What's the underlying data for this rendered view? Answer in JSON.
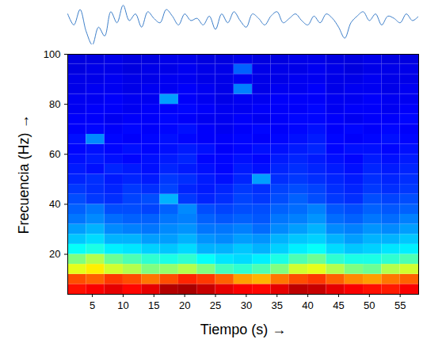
{
  "chart_data": {
    "type": "heatmap",
    "xlabel": "Tiempo (s)",
    "ylabel": "Frecuencia (Hz)",
    "xlim": [
      1,
      58
    ],
    "ylim": [
      4,
      100
    ],
    "xticks": [
      5,
      10,
      15,
      20,
      25,
      30,
      35,
      40,
      45,
      50,
      55
    ],
    "yticks": [
      20,
      40,
      60,
      80,
      100
    ],
    "time_bins": [
      1,
      4,
      7,
      10,
      13,
      16,
      19,
      22,
      25,
      28,
      31,
      34,
      37,
      40,
      43,
      46,
      49,
      52,
      55,
      58
    ],
    "frequency_bins": [
      4,
      8,
      12,
      16,
      20,
      24,
      28,
      32,
      36,
      40,
      44,
      48,
      52,
      56,
      60,
      64,
      68,
      72,
      76,
      80,
      84,
      88,
      92,
      96,
      100
    ],
    "zlim": [
      0,
      1
    ],
    "z": [
      [
        0.86,
        0.88,
        0.9,
        0.87,
        0.9,
        0.95,
        0.96,
        0.93,
        0.9,
        0.88,
        0.87,
        0.9,
        0.94,
        0.93,
        0.9,
        0.88,
        0.86,
        0.85,
        0.88
      ],
      [
        0.8,
        0.78,
        0.82,
        0.8,
        0.76,
        0.8,
        0.84,
        0.82,
        0.78,
        0.72,
        0.7,
        0.76,
        0.8,
        0.82,
        0.78,
        0.74,
        0.72,
        0.76,
        0.78
      ],
      [
        0.6,
        0.64,
        0.58,
        0.55,
        0.5,
        0.52,
        0.55,
        0.5,
        0.44,
        0.42,
        0.45,
        0.5,
        0.58,
        0.6,
        0.55,
        0.5,
        0.48,
        0.55,
        0.58
      ],
      [
        0.5,
        0.55,
        0.48,
        0.45,
        0.42,
        0.4,
        0.42,
        0.38,
        0.35,
        0.34,
        0.36,
        0.4,
        0.45,
        0.48,
        0.42,
        0.4,
        0.4,
        0.42,
        0.45
      ],
      [
        0.38,
        0.4,
        0.36,
        0.35,
        0.33,
        0.32,
        0.34,
        0.3,
        0.3,
        0.32,
        0.3,
        0.33,
        0.36,
        0.38,
        0.34,
        0.32,
        0.33,
        0.35,
        0.36
      ],
      [
        0.32,
        0.34,
        0.3,
        0.3,
        0.28,
        0.28,
        0.3,
        0.27,
        0.26,
        0.28,
        0.27,
        0.3,
        0.32,
        0.33,
        0.3,
        0.28,
        0.3,
        0.3,
        0.32
      ],
      [
        0.28,
        0.3,
        0.26,
        0.25,
        0.24,
        0.26,
        0.27,
        0.24,
        0.24,
        0.25,
        0.23,
        0.26,
        0.28,
        0.3,
        0.26,
        0.25,
        0.27,
        0.26,
        0.28
      ],
      [
        0.24,
        0.26,
        0.23,
        0.22,
        0.22,
        0.24,
        0.25,
        0.22,
        0.21,
        0.22,
        0.21,
        0.24,
        0.25,
        0.27,
        0.23,
        0.22,
        0.24,
        0.23,
        0.25
      ],
      [
        0.22,
        0.24,
        0.2,
        0.2,
        0.19,
        0.22,
        0.26,
        0.2,
        0.19,
        0.2,
        0.2,
        0.22,
        0.23,
        0.25,
        0.21,
        0.2,
        0.22,
        0.21,
        0.22
      ],
      [
        0.2,
        0.18,
        0.17,
        0.19,
        0.2,
        0.3,
        0.18,
        0.16,
        0.17,
        0.19,
        0.18,
        0.2,
        0.22,
        0.2,
        0.18,
        0.17,
        0.2,
        0.19,
        0.2
      ],
      [
        0.18,
        0.17,
        0.16,
        0.18,
        0.17,
        0.19,
        0.16,
        0.15,
        0.16,
        0.18,
        0.17,
        0.19,
        0.2,
        0.19,
        0.17,
        0.16,
        0.18,
        0.17,
        0.18
      ],
      [
        0.16,
        0.17,
        0.15,
        0.16,
        0.15,
        0.18,
        0.17,
        0.15,
        0.14,
        0.16,
        0.28,
        0.17,
        0.18,
        0.17,
        0.16,
        0.15,
        0.17,
        0.16,
        0.17
      ],
      [
        0.15,
        0.14,
        0.16,
        0.15,
        0.14,
        0.16,
        0.15,
        0.14,
        0.13,
        0.15,
        0.14,
        0.16,
        0.17,
        0.16,
        0.15,
        0.14,
        0.16,
        0.15,
        0.16
      ],
      [
        0.14,
        0.15,
        0.14,
        0.13,
        0.14,
        0.15,
        0.16,
        0.13,
        0.13,
        0.14,
        0.13,
        0.15,
        0.16,
        0.15,
        0.14,
        0.13,
        0.15,
        0.14,
        0.15
      ],
      [
        0.13,
        0.14,
        0.13,
        0.14,
        0.13,
        0.14,
        0.15,
        0.14,
        0.12,
        0.13,
        0.14,
        0.14,
        0.15,
        0.16,
        0.13,
        0.14,
        0.14,
        0.13,
        0.14
      ],
      [
        0.14,
        0.26,
        0.13,
        0.12,
        0.13,
        0.14,
        0.13,
        0.12,
        0.12,
        0.13,
        0.12,
        0.13,
        0.14,
        0.15,
        0.13,
        0.12,
        0.13,
        0.14,
        0.13
      ],
      [
        0.12,
        0.13,
        0.12,
        0.13,
        0.12,
        0.13,
        0.14,
        0.12,
        0.11,
        0.12,
        0.13,
        0.12,
        0.13,
        0.14,
        0.12,
        0.13,
        0.12,
        0.13,
        0.12
      ],
      [
        0.12,
        0.12,
        0.11,
        0.12,
        0.12,
        0.13,
        0.12,
        0.11,
        0.11,
        0.12,
        0.11,
        0.12,
        0.13,
        0.13,
        0.12,
        0.11,
        0.12,
        0.12,
        0.13
      ],
      [
        0.11,
        0.12,
        0.12,
        0.11,
        0.12,
        0.12,
        0.13,
        0.12,
        0.11,
        0.11,
        0.12,
        0.12,
        0.12,
        0.13,
        0.11,
        0.12,
        0.12,
        0.11,
        0.12
      ],
      [
        0.11,
        0.11,
        0.12,
        0.11,
        0.11,
        0.28,
        0.12,
        0.11,
        0.1,
        0.11,
        0.11,
        0.12,
        0.12,
        0.12,
        0.11,
        0.11,
        0.12,
        0.11,
        0.11
      ],
      [
        0.1,
        0.11,
        0.11,
        0.1,
        0.11,
        0.11,
        0.12,
        0.11,
        0.1,
        0.25,
        0.1,
        0.11,
        0.11,
        0.12,
        0.1,
        0.11,
        0.11,
        0.1,
        0.11
      ],
      [
        0.1,
        0.1,
        0.11,
        0.1,
        0.1,
        0.11,
        0.11,
        0.1,
        0.1,
        0.11,
        0.1,
        0.1,
        0.11,
        0.11,
        0.1,
        0.1,
        0.11,
        0.1,
        0.1
      ],
      [
        0.09,
        0.1,
        0.1,
        0.09,
        0.1,
        0.1,
        0.11,
        0.1,
        0.1,
        0.22,
        0.1,
        0.1,
        0.1,
        0.11,
        0.1,
        0.09,
        0.1,
        0.1,
        0.1
      ],
      [
        0.09,
        0.09,
        0.1,
        0.09,
        0.09,
        0.1,
        0.1,
        0.09,
        0.09,
        0.1,
        0.09,
        0.09,
        0.1,
        0.1,
        0.09,
        0.09,
        0.1,
        0.09,
        0.09
      ]
    ],
    "trace": {
      "color": "#3a7dc9",
      "x": [
        1,
        2,
        3,
        4,
        5,
        6,
        7,
        8,
        9,
        10,
        11,
        12,
        13,
        14,
        15,
        16,
        17,
        18,
        19,
        20,
        21,
        22,
        23,
        24,
        25,
        26,
        27,
        28,
        29,
        30,
        31,
        32,
        33,
        34,
        35,
        36,
        37,
        38,
        39,
        40,
        41,
        42,
        43,
        44,
        45,
        46,
        47,
        48,
        49,
        50,
        51,
        52,
        53,
        54,
        55,
        56,
        57,
        58
      ],
      "values": [
        2,
        -3,
        4,
        -6,
        -12,
        -4,
        -8,
        3,
        -2,
        6,
        -1,
        2,
        -4,
        3,
        0,
        -2,
        4,
        1,
        -3,
        2,
        -1,
        0,
        -3,
        1,
        -5,
        2,
        -2,
        3,
        -1,
        -4,
        2,
        0,
        -3,
        1,
        3,
        -2,
        0,
        2,
        -1,
        -3,
        1,
        -2,
        2,
        0,
        -4,
        -9,
        -2,
        1,
        3,
        -1,
        2,
        -3,
        1,
        0,
        -2,
        2,
        -1,
        1
      ]
    }
  }
}
